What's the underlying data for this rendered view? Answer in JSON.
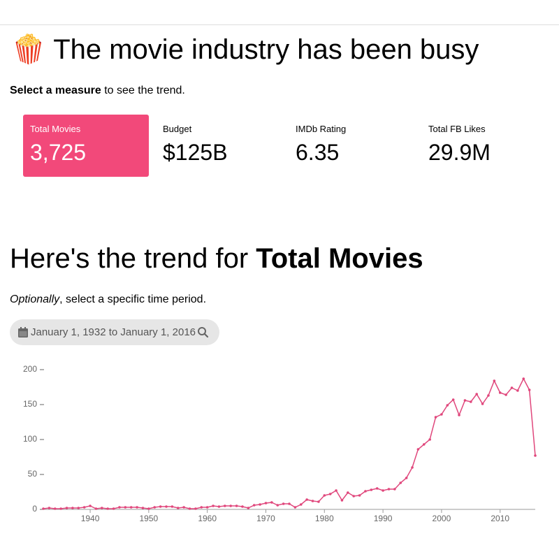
{
  "header": {
    "title": "🍿 The movie industry has been busy"
  },
  "instructions": {
    "bold": "Select a measure",
    "rest": "to see the trend."
  },
  "cards": [
    {
      "label": "Total Movies",
      "value": "3,725"
    },
    {
      "label": "Budget",
      "value": "$125B"
    },
    {
      "label": "IMDb Rating",
      "value": "6.35"
    },
    {
      "label": "Total FB Likes",
      "value": "29.9M"
    }
  ],
  "trend": {
    "heading": "Here's the trend for",
    "measure": "Total Movies",
    "optional_italic": "Optionally",
    "optional_rest": ", select a specific time period.",
    "date_range": "January 1, 1932 to January 1, 2016"
  },
  "chart_data": {
    "type": "line",
    "color": "#e0477c",
    "x": [
      1932,
      1933,
      1934,
      1935,
      1936,
      1937,
      1938,
      1939,
      1940,
      1941,
      1942,
      1943,
      1944,
      1945,
      1946,
      1947,
      1948,
      1949,
      1950,
      1951,
      1952,
      1953,
      1954,
      1955,
      1956,
      1957,
      1958,
      1959,
      1960,
      1961,
      1962,
      1963,
      1964,
      1965,
      1966,
      1967,
      1968,
      1969,
      1970,
      1971,
      1972,
      1973,
      1974,
      1975,
      1976,
      1977,
      1978,
      1979,
      1980,
      1981,
      1982,
      1983,
      1984,
      1985,
      1986,
      1987,
      1988,
      1989,
      1990,
      1991,
      1992,
      1993,
      1994,
      1995,
      1996,
      1997,
      1998,
      1999,
      2000,
      2001,
      2002,
      2003,
      2004,
      2005,
      2006,
      2007,
      2008,
      2009,
      2010,
      2011,
      2012,
      2013,
      2014,
      2015,
      2016
    ],
    "values": [
      1,
      2,
      1,
      1,
      2,
      2,
      2,
      3,
      5,
      1,
      2,
      1,
      1,
      3,
      3,
      3,
      3,
      2,
      1,
      3,
      4,
      4,
      4,
      2,
      3,
      1,
      1,
      3,
      3,
      5,
      4,
      5,
      5,
      5,
      4,
      2,
      6,
      7,
      9,
      10,
      6,
      8,
      8,
      3,
      7,
      14,
      12,
      11,
      20,
      22,
      27,
      13,
      24,
      19,
      20,
      26,
      28,
      30,
      27,
      29,
      29,
      38,
      45,
      60,
      86,
      93,
      100,
      132,
      136,
      149,
      157,
      135,
      156,
      154,
      165,
      151,
      163,
      184,
      167,
      164,
      174,
      170,
      187,
      171,
      77
    ],
    "xlim": [
      1932,
      2016
    ],
    "xticks": [
      1940,
      1950,
      1960,
      1970,
      1980,
      1990,
      2000,
      2010
    ],
    "ylim": [
      0,
      200
    ],
    "yticks": [
      0,
      50,
      100,
      150,
      200
    ]
  }
}
